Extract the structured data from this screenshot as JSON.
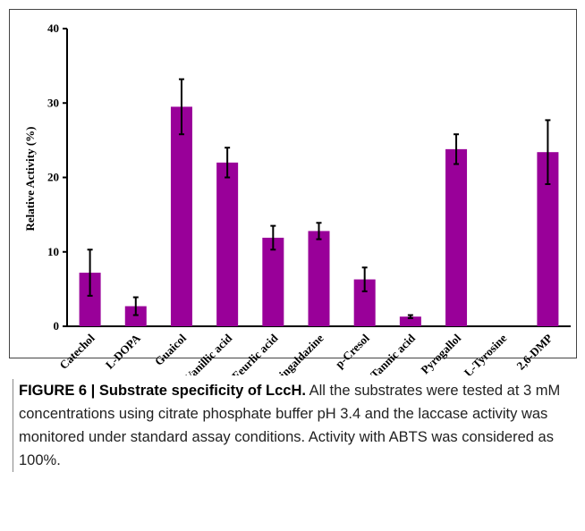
{
  "chart_data": {
    "type": "bar",
    "y_label": "Relative Activity (%)",
    "categories": [
      "Catechol",
      "L-DOPA",
      "Guaicol",
      "Vanillic acid",
      "Feurlic acid",
      "Syringaldazine",
      "p-Cresol",
      "Tannic acid",
      "Pyrogallol",
      "L-Tyrosine",
      "2,6-DMP"
    ],
    "values": [
      7.2,
      2.7,
      29.5,
      22.0,
      11.9,
      12.8,
      6.3,
      1.3,
      23.8,
      0,
      23.4
    ],
    "errors": [
      3.1,
      1.2,
      3.7,
      2.0,
      1.6,
      1.1,
      1.6,
      0.2,
      2.0,
      0,
      4.3
    ],
    "color": "#990099",
    "ylim": [
      0,
      40
    ],
    "yticks": [
      0,
      10,
      20,
      30,
      40
    ],
    "grid": false
  },
  "caption": {
    "label": "FIGURE 6 | Substrate specificity of LccH.",
    "text": "All the substrates were tested at 3 mM concentrations using citrate phosphate buffer pH 3.4 and the laccase activity was monitored under standard assay conditions. Activity with ABTS was considered as 100%."
  }
}
